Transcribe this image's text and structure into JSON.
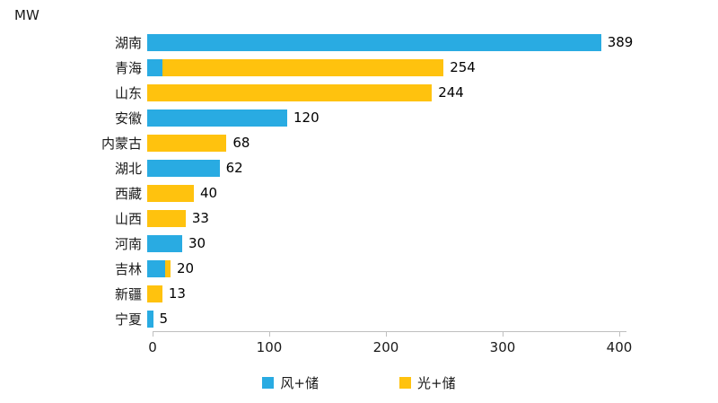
{
  "chart_data": {
    "type": "bar",
    "orientation": "horizontal",
    "stacked": true,
    "unit_label": "MW",
    "categories": [
      "湖南",
      "青海",
      "山东",
      "安徽",
      "内蒙古",
      "湖北",
      "西藏",
      "山西",
      "河南",
      "吉林",
      "新疆",
      "宁夏"
    ],
    "series": [
      {
        "name": "风+储",
        "color": "#29ABE2",
        "values": [
          389,
          13,
          0,
          120,
          0,
          62,
          0,
          0,
          30,
          15,
          0,
          5
        ]
      },
      {
        "name": "光+储",
        "color": "#FFC20E",
        "values": [
          0,
          241,
          244,
          0,
          68,
          0,
          40,
          33,
          0,
          5,
          13,
          0
        ]
      }
    ],
    "totals": [
      389,
      254,
      244,
      120,
      68,
      62,
      40,
      33,
      30,
      20,
      13,
      5
    ],
    "x_ticks": [
      0,
      100,
      200,
      300,
      400
    ],
    "xlim": [
      0,
      400
    ],
    "grid": false,
    "legend_position": "bottom",
    "axis_color": "#bfbfbf"
  }
}
